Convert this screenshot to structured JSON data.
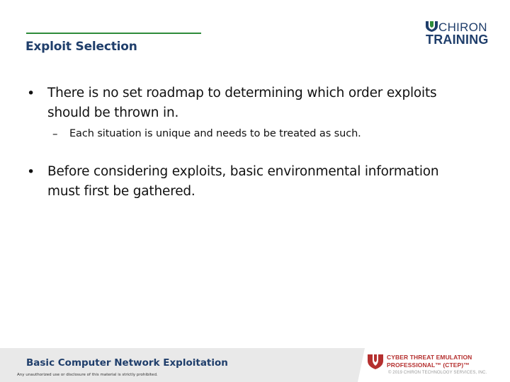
{
  "header": {
    "title": "Exploit Selection",
    "logo": {
      "line1": "CHIRON",
      "line2": "TRAINING"
    }
  },
  "content": {
    "bullets": [
      {
        "line1": "There is no set roadmap to determining which order exploits",
        "line2": "should be thrown in.",
        "sub": "Each situation is unique and needs to be treated as such."
      },
      {
        "line1": "Before considering exploits, basic environmental information",
        "line2": "must first be gathered."
      }
    ]
  },
  "footer": {
    "course": "Basic Computer Network Exploitation",
    "legal": "Any unauthorized use or disclosure of this material is strictly prohibited.",
    "program_line1": "CYBER THREAT EMULATION",
    "program_line2": "PROFESSIONAL™ (CTEP)™",
    "copyright": "© 2019 CHIRON TECHNOLOGY SERVICES, INC."
  },
  "colors": {
    "brand_navy": "#1f3e6b",
    "accent_green": "#2e8b3a",
    "ctep_red": "#b5302f"
  }
}
